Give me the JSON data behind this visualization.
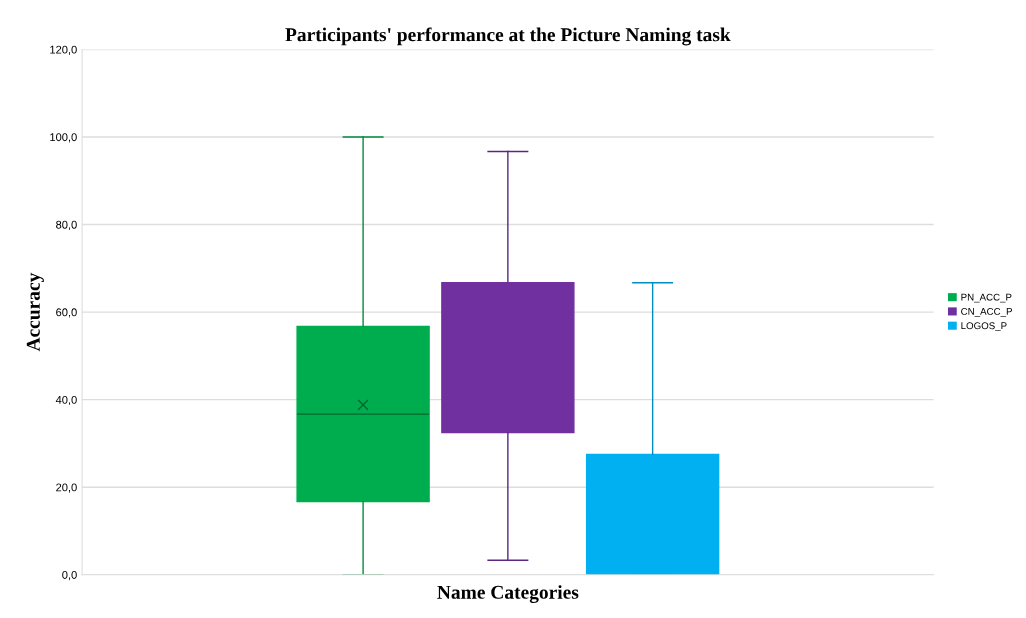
{
  "chart_data": {
    "type": "box",
    "title": "Participants' performance at the Picture Naming task",
    "xlabel": "Name Categories",
    "ylabel": "Accuracy",
    "categories": [
      null
    ],
    "series": [
      {
        "name": "PN_ACC_P",
        "color": "#00ad4e",
        "boxes": [
          {
            "low": 0,
            "q1": 16.7,
            "median": 36.7,
            "q3": 56.7,
            "high": 100,
            "mean": 38.8
          }
        ]
      },
      {
        "name": "CN_ACC_P",
        "color": "#7030a0",
        "boxes": [
          {
            "low": 3.3,
            "q1": 32.5,
            "median": 66.7,
            "q3": 66.7,
            "high": 96.7
          }
        ]
      },
      {
        "name": "LOGOS_P",
        "color": "#00b0f0",
        "boxes": [
          {
            "low": 0,
            "q1": 0,
            "median": 0,
            "q3": 27.5,
            "high": 66.7
          }
        ]
      }
    ],
    "ylim": [
      0,
      120
    ],
    "yticks": [
      {
        "value": 0,
        "label": "0,0"
      },
      {
        "value": 20,
        "label": "20,0"
      },
      {
        "value": 40,
        "label": "40,0"
      },
      {
        "value": 60,
        "label": "60,0"
      },
      {
        "value": 80,
        "label": "80,0"
      },
      {
        "value": 100,
        "label": "100,0"
      },
      {
        "value": 120,
        "label": "120,0"
      }
    ],
    "grid": "y",
    "legend": "right"
  }
}
